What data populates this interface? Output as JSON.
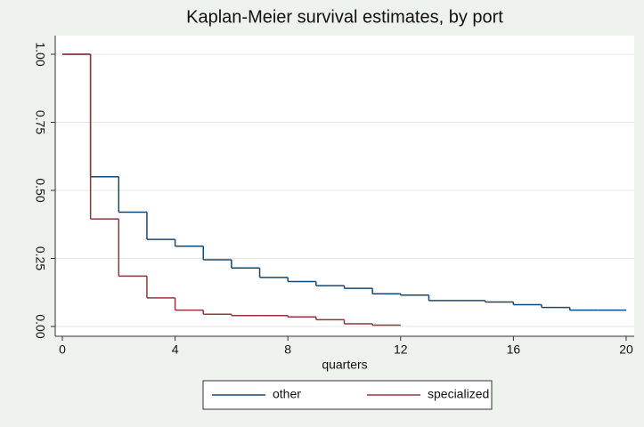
{
  "chart_data": {
    "type": "step",
    "title": "Kaplan-Meier survival estimates, by port",
    "x_label": "quarters",
    "xlim": [
      0,
      20
    ],
    "xticks": [
      0,
      4,
      8,
      12,
      16,
      20
    ],
    "ylim": [
      0,
      1
    ],
    "yticks": [
      {
        "value": 0,
        "label": "0.00"
      },
      {
        "value": 0.25,
        "label": "0.25"
      },
      {
        "value": 0.5,
        "label": "0.50"
      },
      {
        "value": 0.75,
        "label": "0.75"
      },
      {
        "value": 1,
        "label": "1.00"
      }
    ],
    "grid": true,
    "legend": "bottom",
    "series": [
      {
        "name": "other",
        "color": "#1a476f",
        "x": [
          0,
          1,
          2,
          3,
          4,
          5,
          6,
          7,
          8,
          9,
          10,
          11,
          12,
          13,
          14,
          15,
          16,
          17,
          18,
          19,
          20
        ],
        "values": [
          1.0,
          0.55,
          0.42,
          0.32,
          0.295,
          0.245,
          0.215,
          0.18,
          0.165,
          0.15,
          0.14,
          0.12,
          0.115,
          0.095,
          0.095,
          0.09,
          0.08,
          0.07,
          0.06,
          0.06,
          0.06
        ]
      },
      {
        "name": "specialized",
        "color": "#90353b",
        "x": [
          0,
          1,
          2,
          3,
          4,
          5,
          6,
          7,
          8,
          9,
          10,
          11,
          12
        ],
        "values": [
          1.0,
          0.395,
          0.185,
          0.105,
          0.06,
          0.045,
          0.04,
          0.04,
          0.035,
          0.025,
          0.01,
          0.005,
          0.005
        ]
      }
    ]
  }
}
